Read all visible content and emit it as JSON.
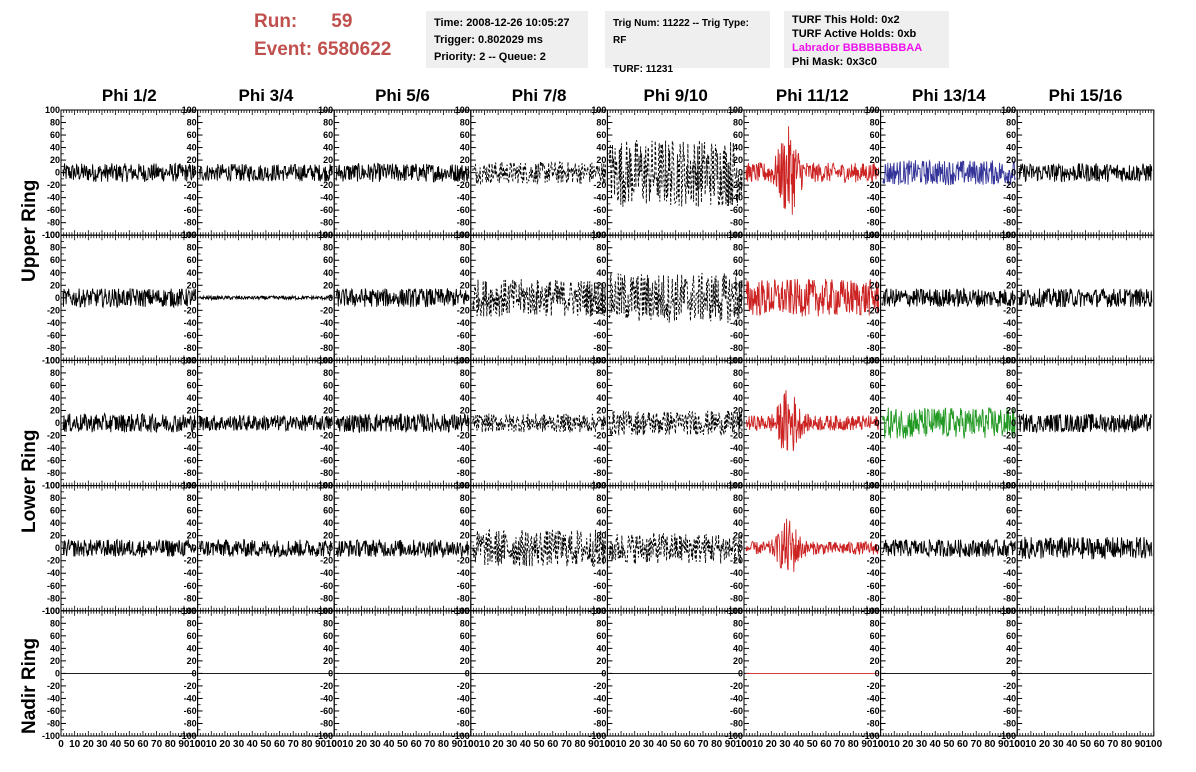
{
  "run": {
    "label": "Run:",
    "value": "59"
  },
  "event": {
    "label": "Event:",
    "value": "6580622"
  },
  "info_time": {
    "time": "Time: 2008-12-26 10:05:27",
    "trigger": "Trigger: 0.802029 ms",
    "priority": "Priority: 2 -- Queue: 2"
  },
  "info_trig": {
    "trig": "Trig Num: 11222 -- Trig Type: RF",
    "turf": "TURF: 11231"
  },
  "info_turf": {
    "this_hold": "TURF This Hold: 0x2",
    "active_holds": "TURF Active Holds: 0xb",
    "labrador": "Labrador BBBBBBBBAA",
    "phi_mask": "Phi Mask: 0x3c0"
  },
  "phi_headers": [
    "Phi 1/2",
    "Phi 3/4",
    "Phi 5/6",
    "Phi 7/8",
    "Phi 9/10",
    "Phi 11/12",
    "Phi 13/14",
    "Phi 15/16"
  ],
  "ring_labels": {
    "upper": "Upper Ring",
    "lower": "Lower Ring",
    "nadir": "Nadir Ring"
  },
  "colors": {
    "title_red": "#c0504d",
    "red": "#cc2222",
    "blue": "#333399",
    "green": "#229922",
    "magenta": "#ee11ee",
    "info_bg": "#efefef"
  },
  "chart_data": {
    "type": "line",
    "ylim": [
      -100,
      100
    ],
    "xlim": [
      0,
      100
    ],
    "y_ticks": [
      -100,
      -80,
      -60,
      -40,
      -20,
      0,
      20,
      40,
      60,
      80,
      100
    ],
    "x_ticks": [
      0,
      10,
      20,
      30,
      40,
      50,
      60,
      70,
      80,
      90,
      100
    ],
    "rows": [
      "Upper Ring",
      "Upper Ring",
      "Lower Ring",
      "Lower Ring",
      "Nadir Ring"
    ],
    "cells": [
      [
        {
          "amp": 15,
          "color": "black",
          "style": "solid"
        },
        {
          "amp": 14,
          "color": "black",
          "style": "solid"
        },
        {
          "amp": 15,
          "color": "black",
          "style": "solid"
        },
        {
          "amp": 18,
          "color": "black",
          "style": "dashed"
        },
        {
          "amp": 55,
          "color": "black",
          "style": "dashed"
        },
        {
          "amp": 45,
          "color": "red",
          "style": "solid",
          "burst": true
        },
        {
          "amp": 20,
          "color": "blue",
          "style": "solid"
        },
        {
          "amp": 15,
          "color": "black",
          "style": "solid"
        }
      ],
      [
        {
          "amp": 15,
          "color": "black",
          "style": "solid"
        },
        {
          "amp": 3,
          "color": "black",
          "style": "solid"
        },
        {
          "amp": 15,
          "color": "black",
          "style": "solid"
        },
        {
          "amp": 30,
          "color": "black",
          "style": "dashed"
        },
        {
          "amp": 40,
          "color": "black",
          "style": "dashed"
        },
        {
          "amp": 30,
          "color": "red",
          "style": "solid"
        },
        {
          "amp": 15,
          "color": "black",
          "style": "solid"
        },
        {
          "amp": 15,
          "color": "black",
          "style": "solid"
        }
      ],
      [
        {
          "amp": 15,
          "color": "black",
          "style": "solid"
        },
        {
          "amp": 13,
          "color": "black",
          "style": "solid"
        },
        {
          "amp": 15,
          "color": "black",
          "style": "solid"
        },
        {
          "amp": 15,
          "color": "black",
          "style": "dashed"
        },
        {
          "amp": 20,
          "color": "black",
          "style": "dashed"
        },
        {
          "amp": 35,
          "color": "red",
          "style": "solid",
          "burst": true
        },
        {
          "amp": 25,
          "color": "green",
          "style": "solid"
        },
        {
          "amp": 15,
          "color": "black",
          "style": "solid"
        }
      ],
      [
        {
          "amp": 14,
          "color": "black",
          "style": "solid"
        },
        {
          "amp": 14,
          "color": "black",
          "style": "solid"
        },
        {
          "amp": 14,
          "color": "black",
          "style": "solid"
        },
        {
          "amp": 30,
          "color": "black",
          "style": "dashed"
        },
        {
          "amp": 25,
          "color": "black",
          "style": "dashed"
        },
        {
          "amp": 30,
          "color": "red",
          "style": "solid",
          "burst": true
        },
        {
          "amp": 14,
          "color": "black",
          "style": "solid"
        },
        {
          "amp": 18,
          "color": "black",
          "style": "solid"
        }
      ],
      [
        {
          "amp": 0,
          "color": "black",
          "style": "solid"
        },
        {
          "amp": 0,
          "color": "black",
          "style": "solid"
        },
        {
          "amp": 0,
          "color": "black",
          "style": "solid"
        },
        {
          "amp": 0,
          "color": "black",
          "style": "solid"
        },
        {
          "amp": 0,
          "color": "black",
          "style": "solid"
        },
        {
          "amp": 0,
          "color": "red",
          "style": "solid"
        },
        {
          "amp": 0,
          "color": "black",
          "style": "solid"
        },
        {
          "amp": 0,
          "color": "black",
          "style": "solid"
        }
      ]
    ]
  }
}
